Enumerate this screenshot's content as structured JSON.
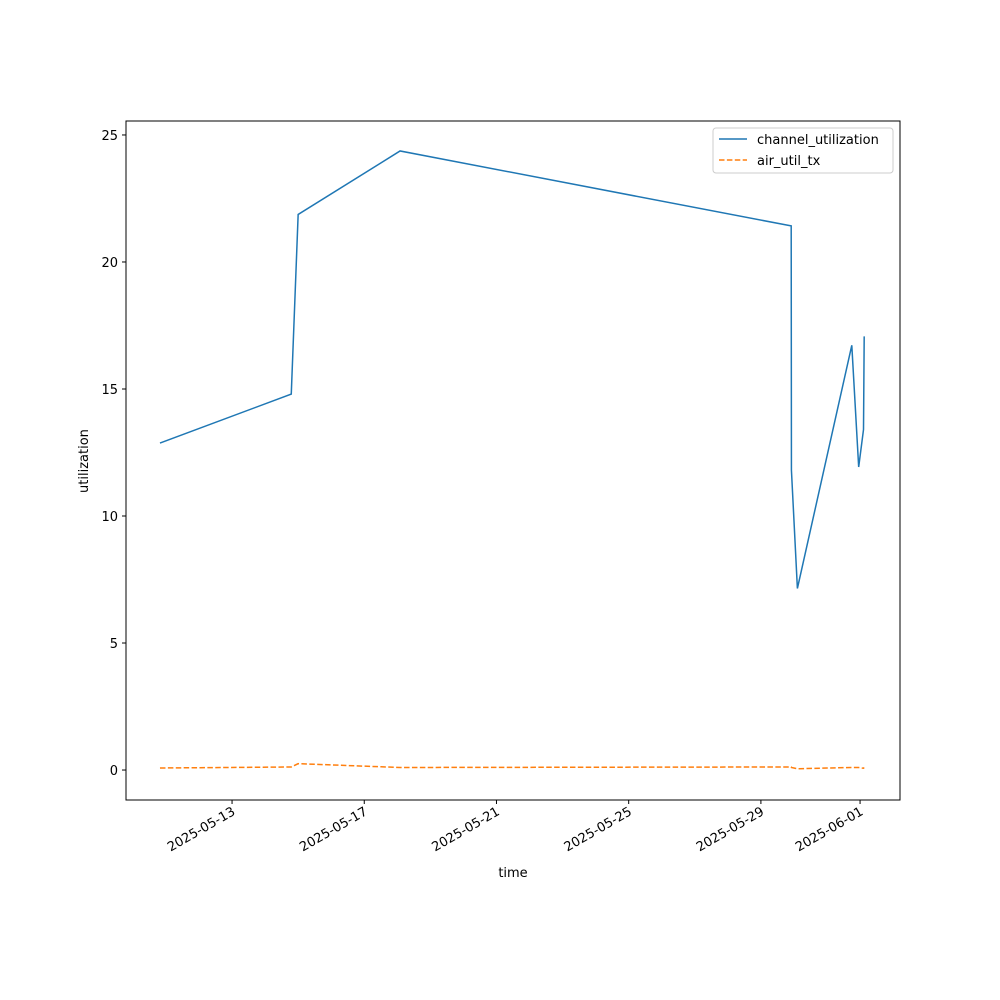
{
  "chart_data": {
    "type": "line",
    "x_label": "time",
    "y_label": "utilization",
    "x": [
      "2025-05-10T19:40",
      "2025-05-14T19:00",
      "2025-05-15T00:00",
      "2025-05-18T02:00",
      "2025-05-29T22:00",
      "2025-05-29T22:10",
      "2025-05-30T02:30",
      "2025-05-31T18:00",
      "2025-05-31T23:00",
      "2025-06-01T02:30",
      "2025-06-01T03:00"
    ],
    "series": [
      {
        "name": "channel_utilization",
        "color": "#1f77b4",
        "linestyle": "solid",
        "values": [
          12.87,
          14.8,
          21.87,
          24.37,
          21.42,
          11.8,
          7.15,
          16.72,
          11.93,
          13.4,
          17.07
        ]
      },
      {
        "name": "air_util_tx",
        "color": "#ff7f0e",
        "linestyle": "dashed",
        "values": [
          0.08,
          0.12,
          0.25,
          0.1,
          0.12,
          0.1,
          0.05,
          0.1,
          0.1,
          0.07,
          0.1
        ]
      }
    ],
    "xlim": [
      "2025-05-09T19:00",
      "2025-06-02T05:00"
    ],
    "xticks": [
      "2025-05-13",
      "2025-05-17",
      "2025-05-21",
      "2025-05-25",
      "2025-05-29",
      "2025-06-01"
    ],
    "ylim": [
      -1.18,
      25.55
    ],
    "yticks": [
      0,
      5,
      10,
      15,
      20,
      25
    ],
    "legend": "upper right"
  }
}
